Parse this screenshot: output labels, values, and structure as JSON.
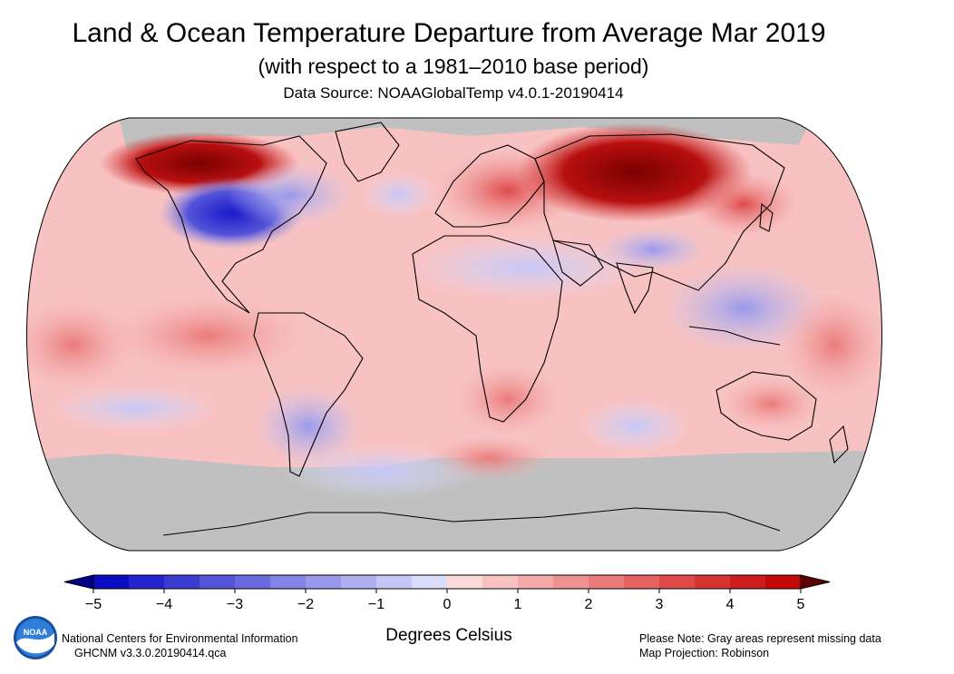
{
  "title": "Land & Ocean Temperature Departure from Average Mar 2019",
  "subtitle": "(with respect to a 1981–2010 base period)",
  "source": "Data Source: NOAAGlobalTemp v4.0.1-20190414",
  "legend": {
    "units": "Degrees Celsius",
    "ticks": [
      "−5",
      "−4",
      "−3",
      "−2",
      "−1",
      "0",
      "1",
      "2",
      "3",
      "4",
      "5"
    ],
    "min": -5,
    "max": 5,
    "step": 0.5,
    "colors": [
      "#0b0bc2",
      "#2424cc",
      "#3b3bd2",
      "#5454d8",
      "#6a6adf",
      "#8383e5",
      "#9999eb",
      "#b0b0f0",
      "#c6c6f6",
      "#dcdcfb",
      "#fcdada",
      "#f8c2c2",
      "#f3aaaa",
      "#ef9292",
      "#eb7a7a",
      "#e56262",
      "#de4a4a",
      "#d73232",
      "#cf1c1c",
      "#c40808"
    ],
    "under_color": "#00008b",
    "over_color": "#5a0000"
  },
  "map": {
    "projection": "Robinson",
    "missing_color": "#c0c0c0",
    "anomaly_regions_c": [
      {
        "region": "Alaska / NW Canada",
        "anomaly": 5.5
      },
      {
        "region": "Central North America",
        "anomaly": -4.0
      },
      {
        "region": "Eastern North America",
        "anomaly": -1.5
      },
      {
        "region": "Europe",
        "anomaly": 2.5
      },
      {
        "region": "Northern Siberia",
        "anomaly": 5.5
      },
      {
        "region": "Central Asia",
        "anomaly": 3.5
      },
      {
        "region": "North Africa / Middle East",
        "anomaly": -0.5
      },
      {
        "region": "India / Southeast Asia",
        "anomaly": -0.8
      },
      {
        "region": "Australia",
        "anomaly": 2.5
      },
      {
        "region": "Southern Africa",
        "anomaly": 2.0
      },
      {
        "region": "South Atlantic",
        "anomaly": 2.0
      },
      {
        "region": "Southern South America",
        "anomaly": -1.2
      },
      {
        "region": "Antarctica",
        "anomaly": null
      }
    ]
  },
  "footer": {
    "org_line1": "National Centers for Environmental Information",
    "org_line2": "GHCNM v3.3.0.20190414.qca",
    "note_line1": "Please Note: Gray areas represent missing data",
    "note_line2": "Map Projection: Robinson",
    "logo_text": "NOAA"
  }
}
